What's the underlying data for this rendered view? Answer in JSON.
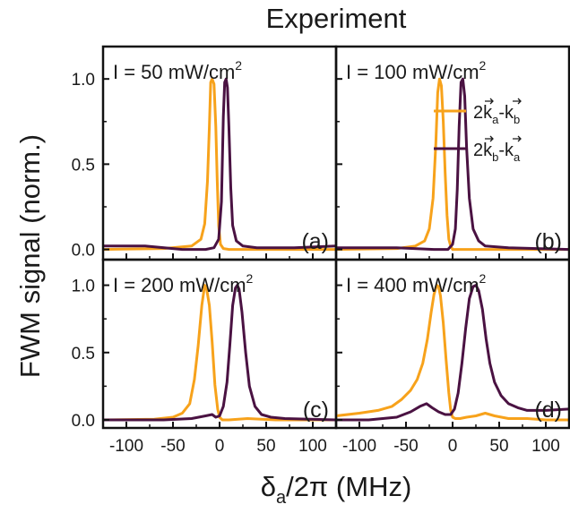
{
  "title": "Experiment",
  "ylabel": "FWM signal (norm.)",
  "xlabel": {
    "main": "δ",
    "sub": "a",
    "rest": "/2π (MHz)"
  },
  "colors": {
    "orange": "#F7A21B",
    "purple": "#4A1242",
    "frame": "#111111"
  },
  "legend": [
    {
      "name": "2k_a-k_b",
      "big": "2",
      "k1": "k",
      "s1": "a",
      "dash": "-",
      "k2": "k",
      "s2": "b",
      "color": "#F7A21B"
    },
    {
      "name": "2k_b-k_a",
      "big": "2",
      "k1": "k",
      "s1": "b",
      "dash": "-",
      "k2": "k",
      "s2": "a",
      "color": "#4A1242"
    }
  ],
  "chart_data": [
    {
      "type": "line",
      "panel": "a",
      "label": "(a)",
      "annotation": {
        "prefix": "I = ",
        "value": "50",
        "unit": " mW/cm",
        "sup": "2"
      },
      "xlim": [
        -125,
        125
      ],
      "ylim": [
        -0.06,
        1.19
      ],
      "yticks": [
        "0.0",
        "0.5",
        "1.0"
      ],
      "xticks": [],
      "series": [
        {
          "color": "#F7A21B",
          "x": [
            -125,
            -60,
            -30,
            -20,
            -16,
            -13,
            -11,
            -9.5,
            -8,
            -6,
            -4,
            -2.5,
            -1,
            1,
            4,
            10,
            20,
            50,
            100,
            125
          ],
          "y": [
            0.0,
            0.005,
            0.02,
            0.06,
            0.15,
            0.4,
            0.72,
            0.98,
            1.0,
            0.97,
            0.72,
            0.4,
            0.14,
            0.03,
            0.005,
            0.0,
            0.0,
            0.0,
            0.0,
            0.0
          ]
        },
        {
          "color": "#4A1242",
          "x": [
            -125,
            -80,
            -40,
            -15,
            -6,
            -1,
            2,
            4,
            5.5,
            7,
            8.5,
            10,
            12,
            14,
            18,
            25,
            40,
            80,
            125
          ],
          "y": [
            0.02,
            0.02,
            0.0,
            0.0,
            0.01,
            0.06,
            0.28,
            0.78,
            0.98,
            1.0,
            0.95,
            0.72,
            0.36,
            0.14,
            0.05,
            0.02,
            0.01,
            0.01,
            0.02
          ]
        }
      ]
    },
    {
      "type": "line",
      "panel": "b",
      "label": "(b)",
      "annotation": {
        "prefix": "I = ",
        "value": "100",
        "unit": " mW/cm",
        "sup": "2"
      },
      "xlim": [
        -125,
        125
      ],
      "ylim": [
        -0.06,
        1.19
      ],
      "yticks": [],
      "xticks": [],
      "series": [
        {
          "color": "#F7A21B",
          "x": [
            -125,
            -60,
            -40,
            -30,
            -25,
            -21,
            -18,
            -16,
            -14,
            -12,
            -10,
            -8,
            -6,
            -4,
            -2,
            0,
            5,
            20,
            60,
            125
          ],
          "y": [
            0.0,
            0.005,
            0.02,
            0.05,
            0.12,
            0.3,
            0.62,
            0.92,
            1.0,
            0.96,
            0.75,
            0.45,
            0.2,
            0.06,
            0.02,
            0.0,
            0.0,
            0.0,
            0.0,
            0.0
          ]
        },
        {
          "color": "#4A1242",
          "x": [
            -125,
            -60,
            -20,
            -5,
            0,
            3,
            5,
            7,
            9,
            11,
            13,
            15,
            18,
            22,
            28,
            35,
            60,
            125
          ],
          "y": [
            0.01,
            0.01,
            0.0,
            0.0,
            0.03,
            0.12,
            0.35,
            0.72,
            0.98,
            1.0,
            0.9,
            0.6,
            0.3,
            0.12,
            0.05,
            0.02,
            0.01,
            0.0
          ]
        }
      ]
    },
    {
      "type": "line",
      "panel": "c",
      "label": "(c)",
      "annotation": {
        "prefix": "I = ",
        "value": "200",
        "unit": " mW/cm",
        "sup": "2"
      },
      "xlim": [
        -125,
        125
      ],
      "ylim": [
        -0.06,
        1.19
      ],
      "yticks": [
        "0.0",
        "0.5",
        "1.0"
      ],
      "xticks": [
        "-100",
        "-50",
        "0",
        "50",
        "100"
      ],
      "series": [
        {
          "color": "#F7A21B",
          "x": [
            -125,
            -70,
            -50,
            -40,
            -32,
            -27,
            -23,
            -19,
            -16,
            -14,
            -11,
            -8,
            -5,
            -2,
            0,
            3,
            10,
            30,
            60,
            125
          ],
          "y": [
            0.0,
            0.005,
            0.02,
            0.05,
            0.12,
            0.3,
            0.55,
            0.85,
            1.0,
            0.98,
            0.85,
            0.58,
            0.26,
            0.08,
            0.02,
            0.0,
            0.0,
            0.01,
            0.0,
            0.0
          ]
        },
        {
          "color": "#4A1242",
          "x": [
            -125,
            -60,
            -30,
            -15,
            -8,
            -4,
            0,
            4,
            8,
            11,
            14,
            17,
            19,
            21,
            24,
            28,
            32,
            38,
            45,
            55,
            70,
            125
          ],
          "y": [
            0.0,
            0.0,
            0.01,
            0.03,
            0.04,
            0.02,
            0.03,
            0.1,
            0.28,
            0.55,
            0.85,
            0.98,
            1.0,
            0.97,
            0.8,
            0.5,
            0.25,
            0.1,
            0.04,
            0.02,
            0.01,
            0.0
          ]
        }
      ]
    },
    {
      "type": "line",
      "panel": "d",
      "label": "(d)",
      "annotation": {
        "prefix": "I = ",
        "value": "400",
        "unit": " mW/cm",
        "sup": "2"
      },
      "xlim": [
        -125,
        125
      ],
      "ylim": [
        -0.06,
        1.19
      ],
      "yticks": [],
      "xticks": [
        "-100",
        "-50",
        "0",
        "50",
        "100"
      ],
      "series": [
        {
          "color": "#F7A21B",
          "x": [
            -125,
            -100,
            -80,
            -65,
            -55,
            -45,
            -38,
            -32,
            -27,
            -23,
            -20,
            -17,
            -15,
            -13,
            -10,
            -7,
            -4,
            -2,
            0,
            3,
            8,
            15,
            25,
            35,
            45,
            60,
            80,
            100,
            125
          ],
          "y": [
            0.03,
            0.05,
            0.07,
            0.1,
            0.15,
            0.22,
            0.3,
            0.42,
            0.6,
            0.8,
            0.93,
            1.0,
            0.99,
            0.92,
            0.72,
            0.45,
            0.2,
            0.07,
            0.02,
            0.01,
            0.01,
            0.02,
            0.03,
            0.05,
            0.03,
            0.01,
            0.01,
            0.0,
            0.0
          ]
        },
        {
          "color": "#4A1242",
          "x": [
            -125,
            -90,
            -60,
            -45,
            -35,
            -28,
            -22,
            -15,
            -8,
            -2,
            2,
            6,
            10,
            14,
            18,
            22,
            25,
            28,
            32,
            36,
            40,
            45,
            52,
            60,
            70,
            80,
            100,
            125
          ],
          "y": [
            0.0,
            0.0,
            0.02,
            0.06,
            0.1,
            0.12,
            0.09,
            0.06,
            0.04,
            0.04,
            0.08,
            0.2,
            0.42,
            0.68,
            0.9,
            0.99,
            1.0,
            0.96,
            0.82,
            0.6,
            0.42,
            0.28,
            0.18,
            0.12,
            0.09,
            0.07,
            0.07,
            0.08
          ]
        }
      ]
    }
  ]
}
